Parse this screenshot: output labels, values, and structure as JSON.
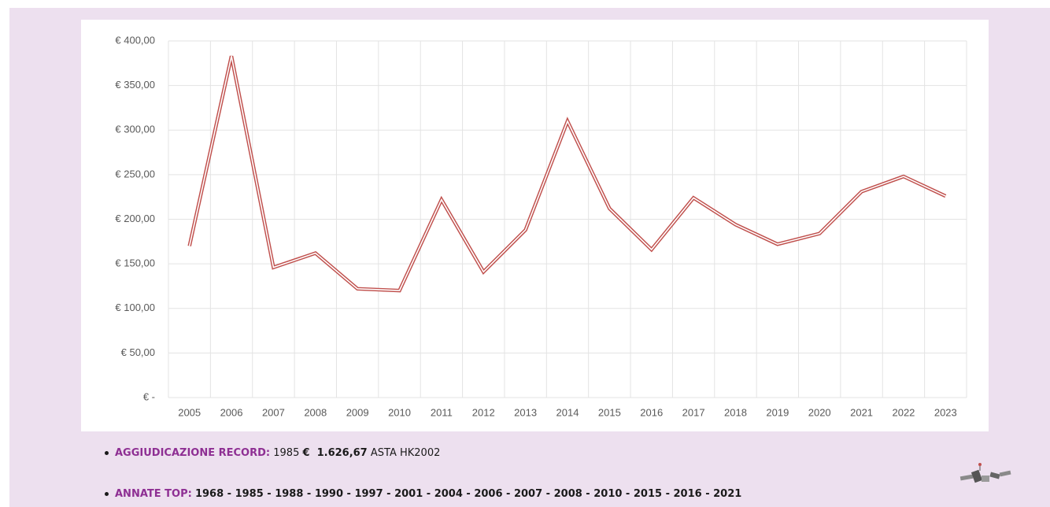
{
  "chart_data": {
    "type": "line",
    "categories": [
      "2005",
      "2006",
      "2007",
      "2008",
      "2009",
      "2010",
      "2011",
      "2012",
      "2013",
      "2014",
      "2015",
      "2016",
      "2017",
      "2018",
      "2019",
      "2020",
      "2021",
      "2022",
      "2023"
    ],
    "series": [
      {
        "color": "#c0504d",
        "values": [
          170,
          383,
          146,
          162,
          122,
          120,
          222,
          141,
          188,
          310,
          212,
          166,
          224,
          194,
          172,
          184,
          231,
          248,
          226
        ]
      }
    ],
    "ylim": [
      0,
      400
    ],
    "yticks": [
      {
        "value": 0,
        "label": "€ -"
      },
      {
        "value": 50,
        "label": "€ 50,00"
      },
      {
        "value": 100,
        "label": "€ 100,00"
      },
      {
        "value": 150,
        "label": "€ 150,00"
      },
      {
        "value": 200,
        "label": "€ 200,00"
      },
      {
        "value": 250,
        "label": "€ 250,00"
      },
      {
        "value": 300,
        "label": "€ 300,00"
      },
      {
        "value": 350,
        "label": "€ 350,00"
      },
      {
        "value": 400,
        "label": "€ 400,00"
      }
    ],
    "grid": true
  },
  "bullets": [
    {
      "key": "AGGIUDICAZIONE RECORD:",
      "year": "1985",
      "amount": "€  1.626,67",
      "note": "ASTA HK2002"
    },
    {
      "key": "ANNATE TOP:",
      "text": "1968 - 1985 - 1988 - 1990 - 1997 - 2001 - 2004 - 2006 - 2007 - 2008 - 2010 - 2015 - 2016 - 2021"
    }
  ]
}
